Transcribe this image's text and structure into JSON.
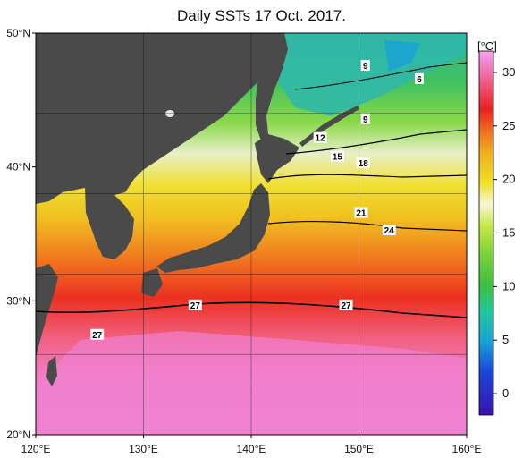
{
  "title": "Daily SSTs 17 Oct. 2017.",
  "map": {
    "lon_ticks": [
      "120°E",
      "130°E",
      "140°E",
      "150°E",
      "160°E"
    ],
    "lat_ticks": [
      "50°N",
      "40°N",
      "30°N",
      "20°N"
    ],
    "lon_range": [
      120,
      160
    ],
    "lat_range": [
      20,
      50
    ],
    "land_color": "#4a4a4a",
    "grid": true
  },
  "colorbar": {
    "unit": "[°C]",
    "ticks": [
      "30",
      "25",
      "20",
      "15",
      "10",
      "5",
      "0"
    ],
    "range": [
      -2,
      32
    ],
    "colors": [
      "#3a10b0",
      "#1848d8",
      "#1aa0d8",
      "#20c8a0",
      "#40c040",
      "#88d838",
      "#c8e848",
      "#f6f6d8",
      "#f0e020",
      "#f0b020",
      "#f07020",
      "#e82020",
      "#f05070",
      "#f080c8",
      "#f8a0f0"
    ]
  },
  "contour_labels": [
    {
      "text": "9",
      "lon": 150.6,
      "lat": 47.6
    },
    {
      "text": "6",
      "lon": 155.6,
      "lat": 46.6
    },
    {
      "text": "9",
      "lon": 150.6,
      "lat": 43.6
    },
    {
      "text": "12",
      "lon": 146.4,
      "lat": 42.2
    },
    {
      "text": "15",
      "lon": 148.0,
      "lat": 40.8
    },
    {
      "text": "18",
      "lon": 150.4,
      "lat": 40.3
    },
    {
      "text": "21",
      "lon": 150.2,
      "lat": 36.6
    },
    {
      "text": "24",
      "lon": 152.8,
      "lat": 35.3
    },
    {
      "text": "27",
      "lon": 134.8,
      "lat": 29.7
    },
    {
      "text": "27",
      "lon": 148.8,
      "lat": 29.7
    },
    {
      "text": "27",
      "lon": 125.7,
      "lat": 27.5
    }
  ]
}
